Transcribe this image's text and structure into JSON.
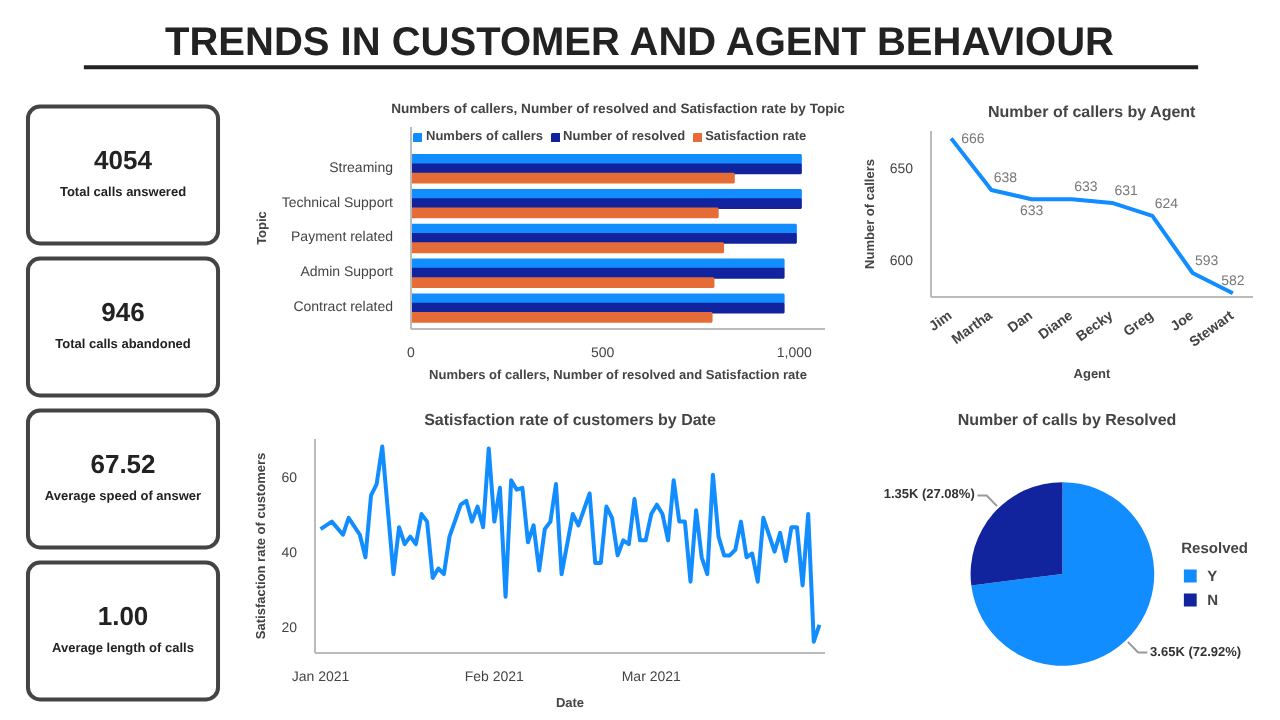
{
  "chart_data": [
    {
      "type": "other",
      "title": "TRENDS IN CUSTOMER AND AGENT BEHAVIOUR"
    },
    {
      "type": "other",
      "annotations": [
        "4054",
        "Total calls answered",
        "946",
        "Total calls abandoned",
        "67.52",
        "Average speed of answer",
        "1.00",
        "Average length of calls"
      ]
    },
    {
      "type": "bar",
      "orientation": "horizontal",
      "title": "Numbers of callers, Number of resolved and Satisfaction rate by Topic",
      "xlabel": "Numbers of callers, Number of resolved and Satisfaction rate",
      "ylabel": "Topic",
      "categories": [
        "Streaming",
        "Technical Support",
        "Payment related",
        "Admin Support",
        "Contract related"
      ],
      "series": [
        {
          "name": "Numbers of callers",
          "color": "#118dff",
          "values": [
            1017,
            1017,
            1004,
            972,
            972
          ]
        },
        {
          "name": "Number of resolved",
          "color": "#12239e",
          "values": [
            1017,
            1017,
            1004,
            972,
            972
          ]
        },
        {
          "name": "Satisfaction rate",
          "color": "#e66c37",
          "values": [
            842,
            800,
            814,
            789,
            784
          ]
        }
      ],
      "xlim": [
        0,
        1080
      ],
      "xticks": [
        0,
        500,
        {
          "value": 1000,
          "label": "1,000"
        }
      ],
      "legend": "top left",
      "grid": false
    },
    {
      "type": "line",
      "title": "Number of callers by Agent",
      "xlabel": "Agent",
      "ylabel": "Number of callers",
      "categories": [
        "Jim",
        "Martha",
        "Dan",
        "Diane",
        "Becky",
        "Greg",
        "Joe",
        "Stewart"
      ],
      "values": [
        666,
        638,
        633,
        633,
        631,
        624,
        593,
        582
      ],
      "color": "#118dff",
      "ylim": [
        580,
        670
      ],
      "yticks": [
        600,
        650
      ],
      "data_labels": true,
      "grid": false
    },
    {
      "type": "line",
      "title": "Satisfaction rate of customers by Date",
      "xlabel": "Date",
      "ylabel": "Satisfaction rate of customers",
      "color": "#118dff",
      "x": [
        "2021-01-01",
        "2021-01-03",
        "2021-01-05",
        "2021-01-06",
        "2021-01-08",
        "2021-01-09",
        "2021-01-10",
        "2021-01-11",
        "2021-01-12",
        "2021-01-14",
        "2021-01-15",
        "2021-01-16",
        "2021-01-17",
        "2021-01-18",
        "2021-01-19",
        "2021-01-20",
        "2021-01-21",
        "2021-01-22",
        "2021-01-23",
        "2021-01-24",
        "2021-01-26",
        "2021-01-27",
        "2021-01-28",
        "2021-01-29",
        "2021-01-30",
        "2021-01-31",
        "2021-02-01",
        "2021-02-02",
        "2021-02-03",
        "2021-02-04",
        "2021-02-05",
        "2021-02-06",
        "2021-02-07",
        "2021-02-08",
        "2021-02-09",
        "2021-02-10",
        "2021-02-11",
        "2021-02-12",
        "2021-02-13",
        "2021-02-15",
        "2021-02-16",
        "2021-02-18",
        "2021-02-19",
        "2021-02-20",
        "2021-02-21",
        "2021-02-22",
        "2021-02-23",
        "2021-02-24",
        "2021-02-25",
        "2021-02-26",
        "2021-02-27",
        "2021-02-28",
        "2021-03-01",
        "2021-03-02",
        "2021-03-03",
        "2021-03-04",
        "2021-03-05",
        "2021-03-06",
        "2021-03-07",
        "2021-03-08",
        "2021-03-09",
        "2021-03-10",
        "2021-03-11",
        "2021-03-12",
        "2021-03-13",
        "2021-03-14",
        "2021-03-15",
        "2021-03-16",
        "2021-03-17",
        "2021-03-18",
        "2021-03-19",
        "2021-03-20",
        "2021-03-21",
        "2021-03-22",
        "2021-03-23",
        "2021-03-24",
        "2021-03-25",
        "2021-03-26",
        "2021-03-27",
        "2021-03-28",
        "2021-03-29",
        "2021-03-30",
        "2021-03-31"
      ],
      "values": [
        46,
        48,
        44.5,
        49,
        44.5,
        38.5,
        55,
        58,
        68,
        34,
        46.5,
        42,
        44,
        42,
        50,
        48,
        33,
        35.5,
        34,
        44,
        52.5,
        53.5,
        48,
        52,
        46.5,
        67.5,
        48,
        57,
        28,
        59,
        56.5,
        57,
        42.5,
        47,
        35,
        46,
        48,
        58,
        34,
        50,
        47,
        55.5,
        37,
        37,
        52,
        49,
        39,
        43,
        42,
        54,
        43,
        43,
        50,
        52.5,
        50,
        43,
        59,
        48,
        48,
        32,
        51,
        38.5,
        34,
        60.5,
        44,
        39,
        39,
        40.5,
        48,
        38.5,
        39.5,
        32,
        49,
        44.5,
        40,
        45,
        37.5,
        46.5,
        46.5,
        31,
        50,
        16,
        20.5
      ],
      "xlim": [
        "2020-12-31",
        "2021-04-01"
      ],
      "xticks": [
        {
          "value": "2021-01-01",
          "label": "Jan 2021"
        },
        {
          "value": "2021-02-01",
          "label": "Feb 2021"
        },
        {
          "value": "2021-03-01",
          "label": "Mar 2021"
        }
      ],
      "ylim": [
        13,
        70
      ],
      "yticks": [
        20,
        40,
        60
      ],
      "grid": false
    },
    {
      "type": "pie",
      "title": "Number of calls by Resolved",
      "categories": [
        "Y",
        "N"
      ],
      "values": [
        3650,
        1350
      ],
      "colors": [
        "#118dff",
        "#12239e"
      ],
      "value_labels": [
        "3.65K (72.92%)",
        "1.35K (27.08%)"
      ],
      "legend_title": "Resolved",
      "legend": "right"
    }
  ]
}
